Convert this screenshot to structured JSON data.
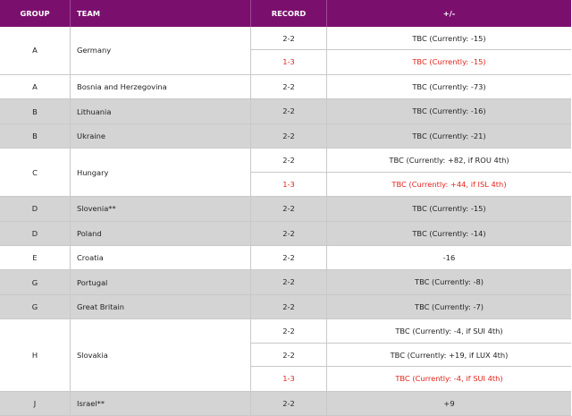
{
  "columns": {
    "group": "GROUP",
    "team": "TEAM",
    "record": "RECORD",
    "diff": "+/-"
  },
  "colors": {
    "header_bg": "#7b0f6e",
    "shade": "#d4d4d4",
    "red": "#e2231a"
  },
  "rows": [
    {
      "group": "A",
      "team": "Germany",
      "shaded": false,
      "lines": [
        {
          "record": "2-2",
          "diff": "TBC (Currently: -15)",
          "red": false
        },
        {
          "record": "1-3",
          "diff": "TBC (Currently: -15)",
          "red": true
        }
      ]
    },
    {
      "group": "A",
      "team": "Bosnia and Herzegovina",
      "shaded": false,
      "lines": [
        {
          "record": "2-2",
          "diff": "TBC (Currently: -73)",
          "red": false
        }
      ]
    },
    {
      "group": "B",
      "team": "Lithuania",
      "shaded": true,
      "lines": [
        {
          "record": "2-2",
          "diff": "TBC (Currently: -16)",
          "red": false
        }
      ]
    },
    {
      "group": "B",
      "team": "Ukraine",
      "shaded": true,
      "lines": [
        {
          "record": "2-2",
          "diff": "TBC (Currently: -21)",
          "red": false
        }
      ]
    },
    {
      "group": "C",
      "team": "Hungary",
      "shaded": false,
      "lines": [
        {
          "record": "2-2",
          "diff": "TBC (Currently: +82, if ROU 4th)",
          "red": false
        },
        {
          "record": "1-3",
          "diff": "TBC (Currently: +44, if ISL 4th)",
          "red": true
        }
      ]
    },
    {
      "group": "D",
      "team": "Slovenia**",
      "shaded": true,
      "lines": [
        {
          "record": "2-2",
          "diff": "TBC (Currently: -15)",
          "red": false
        }
      ]
    },
    {
      "group": "D",
      "team": "Poland",
      "shaded": true,
      "lines": [
        {
          "record": "2-2",
          "diff": "TBC (Currently: -14)",
          "red": false
        }
      ]
    },
    {
      "group": "E",
      "team": "Croatia",
      "shaded": false,
      "lines": [
        {
          "record": "2-2",
          "diff": "-16",
          "red": false
        }
      ]
    },
    {
      "group": "G",
      "team": "Portugal",
      "shaded": true,
      "lines": [
        {
          "record": "2-2",
          "diff": "TBC (Currently: -8)",
          "red": false
        }
      ]
    },
    {
      "group": "G",
      "team": "Great Britain",
      "shaded": true,
      "lines": [
        {
          "record": "2-2",
          "diff": "TBC (Currently: -7)",
          "red": false
        }
      ]
    },
    {
      "group": "H",
      "team": "Slovakia",
      "shaded": false,
      "lines": [
        {
          "record": "2-2",
          "diff": "TBC (Currently: -4, if SUI 4th)",
          "red": false
        },
        {
          "record": "2-2",
          "diff": "TBC (Currently: +19, if LUX 4th)",
          "red": false
        },
        {
          "record": "1-3",
          "diff": "TBC (Currently: -4, if SUI 4th)",
          "red": true
        }
      ]
    },
    {
      "group": "J",
      "team": "Israel**",
      "shaded": true,
      "lines": [
        {
          "record": "2-2",
          "diff": "+9",
          "red": false
        }
      ]
    }
  ]
}
